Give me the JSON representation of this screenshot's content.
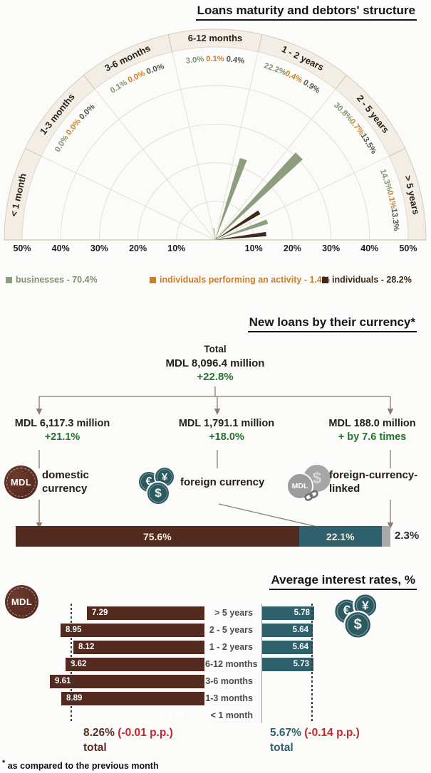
{
  "coins": {
    "mdl_label": "MDL",
    "euro": "€",
    "yen": "¥",
    "dollar": "$"
  },
  "section1": {
    "title": "Loans maturity and debtors' structure",
    "chart_data": {
      "type": "polar-bar",
      "categories": [
        "< 1 month",
        "1-3 months",
        "3-6 months",
        "6-12 months",
        "1 - 2 years",
        "2 - 5 years",
        "> 5 years"
      ],
      "series": [
        {
          "name": "businesses",
          "color": "#8d9e7e",
          "text_color": "#7f9370",
          "values": [
            null,
            0.0,
            0.1,
            3.0,
            22.2,
            30.8,
            14.3
          ]
        },
        {
          "name": "individuals performing an activity",
          "color": "#c8802f",
          "text_color": "#c8802f",
          "values": [
            null,
            0.0,
            0.0,
            0.1,
            0.4,
            0.7,
            0.1
          ]
        },
        {
          "name": "individuals",
          "color": "#3e2b1b",
          "text_color": "#55524a",
          "values": [
            null,
            0.0,
            0.0,
            0.4,
            0.9,
            13.5,
            13.3
          ]
        }
      ],
      "axis_ticks": [
        10,
        20,
        30,
        40,
        50
      ],
      "rlim": [
        0,
        50
      ],
      "grid": true
    },
    "legend": [
      {
        "label": "businesses - 70.4%",
        "color": "#8d9e7e",
        "text_color": "#7f9370"
      },
      {
        "label": "individuals performing an activity - 1.4%",
        "color": "#c8802f",
        "text_color": "#c8802f"
      },
      {
        "label": "individuals - 28.2%",
        "color": "#3e2b1b",
        "text_color": "#3a2a1c"
      }
    ]
  },
  "section2": {
    "title": "New loans by their currency*",
    "total": {
      "label": "Total",
      "amount": "MDL 8,096.4 million",
      "change": "+22.8%"
    },
    "branches": [
      {
        "amount": "MDL 6,117.3 million",
        "change": "+21.1%",
        "label": "domestic currency",
        "icon": "mdl-coin"
      },
      {
        "amount": "MDL 1,791.1 million",
        "change": "+18.0%",
        "label": "foreign currency",
        "icon": "foreign-currency-coins"
      },
      {
        "amount": "MDL 188.0 million",
        "change": "+ by 7.6 times",
        "label": "foreign-currency-linked",
        "icon": "linked-coins"
      }
    ],
    "bar": {
      "segments": [
        {
          "value": 75.6,
          "label": "75.6%",
          "color": "#512a20"
        },
        {
          "value": 22.1,
          "label": "22.1%",
          "color": "#2e616b"
        },
        {
          "value": 2.3,
          "label": "2.3%",
          "color": "#a9a9a9"
        }
      ]
    }
  },
  "section3": {
    "title": "Average interest rates, %",
    "chart_data": {
      "type": "bar",
      "categories": [
        "> 5 years",
        "2 - 5 years",
        "1 - 2 years",
        "6-12 months",
        "3-6 months",
        "1-3 months",
        "< 1 month"
      ],
      "series": [
        {
          "name": "MDL",
          "color": "#522a20",
          "values": [
            7.29,
            8.95,
            8.12,
            8.62,
            9.61,
            8.89,
            0.0
          ]
        },
        {
          "name": "foreign currency",
          "color": "#2e616b",
          "values": [
            5.78,
            5.64,
            5.64,
            5.73,
            null,
            null,
            null
          ]
        }
      ],
      "totals": {
        "mdl": {
          "value": "8.26%",
          "change": "(-0.01 p.p.)",
          "label": "total"
        },
        "foreign": {
          "value": "5.67%",
          "change": "(-0.14 p.p.)",
          "label": "total"
        }
      }
    }
  },
  "footnote": {
    "marker": "*",
    "text": "as compared to the previous month"
  }
}
